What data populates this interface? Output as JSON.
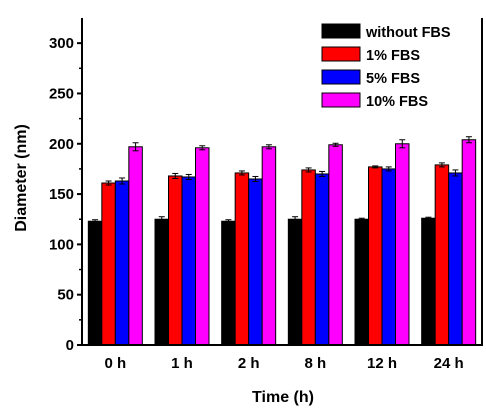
{
  "chart_data": {
    "type": "bar",
    "xlabel": "Time (h)",
    "ylabel": "Diameter (nm)",
    "ylim": [
      0,
      325
    ],
    "yticks": [
      0,
      50,
      100,
      150,
      200,
      250,
      300
    ],
    "categories": [
      "0 h",
      "1 h",
      "2 h",
      "8 h",
      "12 h",
      "24 h"
    ],
    "legend_position": "top-right",
    "error_bars": true,
    "series": [
      {
        "name": "without FBS",
        "color": "#000000",
        "values": [
          123,
          125,
          123,
          125,
          125,
          126
        ],
        "errors": [
          1.5,
          2.5,
          1.5,
          2.5,
          1.0,
          1.0
        ]
      },
      {
        "name": "1% FBS",
        "color": "#ff0000",
        "values": [
          161,
          168,
          171,
          174,
          177,
          179
        ],
        "errors": [
          2.0,
          2.5,
          2.0,
          2.0,
          1.0,
          2.0
        ]
      },
      {
        "name": "5% FBS",
        "color": "#0000ff",
        "values": [
          163,
          167,
          165,
          170,
          175,
          171
        ],
        "errors": [
          3.0,
          2.5,
          2.5,
          2.5,
          2.0,
          3.0
        ]
      },
      {
        "name": "10% FBS",
        "color": "#ff00ff",
        "values": [
          197,
          196,
          197,
          199,
          200,
          204
        ],
        "errors": [
          4.0,
          2.0,
          2.0,
          1.5,
          4.0,
          3.0
        ]
      }
    ]
  }
}
